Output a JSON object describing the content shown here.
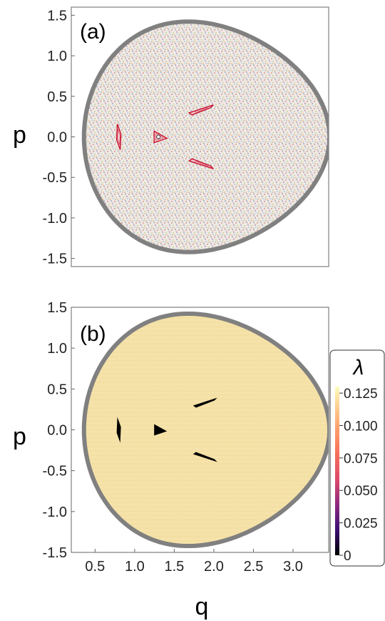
{
  "chart_data": [
    {
      "type": "scatter",
      "panel_label": "(a)",
      "xlabel": "",
      "ylabel": "p",
      "xlim": [
        0.2,
        3.45
      ],
      "ylim": [
        -1.6,
        1.6
      ],
      "y_ticks": [
        "1.5",
        "1.0",
        "0.5",
        "0.0",
        "-0.5",
        "-1.0",
        "-1.5"
      ],
      "y_tick_values": [
        1.5,
        1.0,
        0.5,
        0.0,
        -0.5,
        -1.0,
        -1.5
      ],
      "boundary_color": "#808080",
      "chaotic_sea_colors": [
        "#c0504d",
        "#4f81bd",
        "#9bbb59",
        "#8064a2",
        "#f79646",
        "#4bacc6",
        "#7f7f7f",
        "#d99694"
      ],
      "regular_island_color": "#c8102e",
      "islands": [
        {
          "name": "left-island",
          "q": 0.8,
          "p": 0.0
        },
        {
          "name": "central-island",
          "q": 1.3,
          "p": 0.0
        },
        {
          "name": "upper-island",
          "q": 1.85,
          "p": 0.35
        },
        {
          "name": "lower-island",
          "q": 1.85,
          "p": -0.35
        }
      ]
    },
    {
      "type": "heatmap",
      "panel_label": "(b)",
      "xlabel": "q",
      "ylabel": "p",
      "xlim": [
        0.2,
        3.45
      ],
      "ylim": [
        -1.5,
        1.5
      ],
      "x_ticks": [
        "0.5",
        "1.0",
        "1.5",
        "2.0",
        "2.5",
        "3.0"
      ],
      "x_tick_values": [
        0.5,
        1.0,
        1.5,
        2.0,
        2.5,
        3.0
      ],
      "y_ticks": [
        "1.5",
        "1.0",
        "0.5",
        "0.0",
        "-0.5",
        "-1.0",
        "-1.5"
      ],
      "y_tick_values": [
        1.5,
        1.0,
        0.5,
        0.0,
        -0.5,
        -1.0,
        -1.5
      ],
      "fill_color": "#f5e2a8",
      "island_color": "#000000",
      "islands": [
        {
          "name": "left-island",
          "q": 0.8,
          "p": 0.0
        },
        {
          "name": "central-island",
          "q": 1.3,
          "p": 0.0
        },
        {
          "name": "upper-island",
          "q": 1.9,
          "p": 0.35
        },
        {
          "name": "lower-island",
          "q": 1.9,
          "p": -0.35
        }
      ],
      "colorbar": {
        "title": "λ",
        "min": 0,
        "max": 0.13,
        "ticks": [
          "0.125",
          "0.100",
          "0.075",
          "0.050",
          "0.025",
          "0"
        ],
        "tick_values": [
          0.125,
          0.1,
          0.075,
          0.05,
          0.025,
          0.0
        ],
        "gradient": [
          "#000000",
          "#3b0f70",
          "#8c2981",
          "#de4968",
          "#f66e5b",
          "#fe9f6d",
          "#fecf92",
          "#fcfdbf"
        ]
      }
    }
  ]
}
